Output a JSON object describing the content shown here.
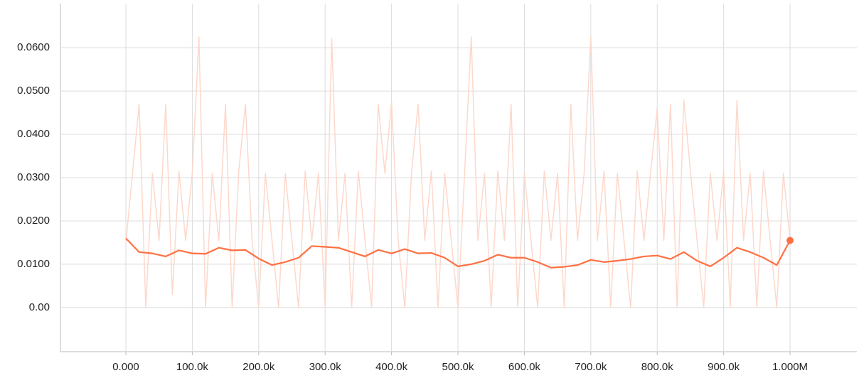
{
  "chart_data": {
    "type": "line",
    "xlim": [
      -98500,
      1100600
    ],
    "ylim": [
      -0.0102,
      0.0702
    ],
    "xticks": [
      {
        "value": 0,
        "label": "0.000"
      },
      {
        "value": 100000,
        "label": "100.0k"
      },
      {
        "value": 200000,
        "label": "200.0k"
      },
      {
        "value": 300000,
        "label": "300.0k"
      },
      {
        "value": 400000,
        "label": "400.0k"
      },
      {
        "value": 500000,
        "label": "500.0k"
      },
      {
        "value": 600000,
        "label": "600.0k"
      },
      {
        "value": 700000,
        "label": "700.0k"
      },
      {
        "value": 800000,
        "label": "800.0k"
      },
      {
        "value": 900000,
        "label": "900.0k"
      },
      {
        "value": 1000000,
        "label": "1.000M"
      }
    ],
    "yticks": [
      {
        "value": 0,
        "label": "0.00"
      },
      {
        "value": 0.01,
        "label": "0.0100"
      },
      {
        "value": 0.02,
        "label": "0.0200"
      },
      {
        "value": 0.03,
        "label": "0.0300"
      },
      {
        "value": 0.04,
        "label": "0.0400"
      },
      {
        "value": 0.05,
        "label": "0.0500"
      },
      {
        "value": 0.06,
        "label": "0.0600"
      }
    ],
    "grid": true,
    "series": [
      {
        "color": "#fdd8cb",
        "x": [
          0,
          10000,
          20000,
          30000,
          40000,
          50000,
          60000,
          70000,
          80000,
          90000,
          100000,
          110000,
          120000,
          130000,
          140000,
          150000,
          160000,
          170000,
          180000,
          190000,
          200000,
          210000,
          220000,
          230000,
          240000,
          250000,
          260000,
          270000,
          280000,
          290000,
          300000,
          310000,
          320000,
          330000,
          340000,
          350000,
          360000,
          370000,
          380000,
          390000,
          400000,
          410000,
          420000,
          430000,
          440000,
          450000,
          460000,
          470000,
          480000,
          490000,
          500000,
          510000,
          520000,
          530000,
          540000,
          550000,
          560000,
          570000,
          580000,
          590000,
          600000,
          610000,
          620000,
          630000,
          640000,
          650000,
          660000,
          670000,
          680000,
          690000,
          700000,
          710000,
          720000,
          730000,
          740000,
          750000,
          760000,
          770000,
          780000,
          790000,
          800000,
          810000,
          820000,
          830000,
          840000,
          850000,
          860000,
          870000,
          880000,
          890000,
          900000,
          910000,
          920000,
          930000,
          940000,
          950000,
          960000,
          970000,
          980000,
          990000,
          1000000
        ],
        "values": [
          0.015,
          0.031,
          0.047,
          0.0,
          0.031,
          0.0155,
          0.047,
          0.003,
          0.0315,
          0.0155,
          0.031,
          0.0625,
          0.0,
          0.031,
          0.0155,
          0.047,
          0.0,
          0.0315,
          0.047,
          0.0155,
          0.0,
          0.031,
          0.0155,
          0.0,
          0.031,
          0.0155,
          0.0,
          0.0315,
          0.0155,
          0.031,
          0.0,
          0.0622,
          0.0155,
          0.031,
          0.0,
          0.0315,
          0.0155,
          0.0,
          0.047,
          0.031,
          0.0475,
          0.0155,
          0.0,
          0.031,
          0.047,
          0.0155,
          0.0315,
          0.0,
          0.031,
          0.0155,
          0.0,
          0.031,
          0.0625,
          0.0155,
          0.031,
          0.0,
          0.0315,
          0.0155,
          0.047,
          0.0,
          0.031,
          0.0155,
          0.0,
          0.0315,
          0.0155,
          0.031,
          0.0,
          0.047,
          0.0155,
          0.031,
          0.0625,
          0.0155,
          0.0315,
          0.0,
          0.031,
          0.0155,
          0.0,
          0.0315,
          0.0155,
          0.031,
          0.046,
          0.0155,
          0.047,
          0.0,
          0.048,
          0.0315,
          0.0155,
          0.0,
          0.031,
          0.0155,
          0.0315,
          0.0,
          0.0478,
          0.0155,
          0.031,
          0.0,
          0.0315,
          0.0155,
          0.0,
          0.031,
          0.0155
        ]
      },
      {
        "color": "#ff7043",
        "x": [
          0,
          20000,
          40000,
          60000,
          80000,
          100000,
          120000,
          140000,
          160000,
          180000,
          200000,
          220000,
          240000,
          260000,
          280000,
          300000,
          320000,
          340000,
          360000,
          380000,
          400000,
          420000,
          440000,
          460000,
          480000,
          500000,
          520000,
          540000,
          560000,
          580000,
          600000,
          620000,
          640000,
          660000,
          680000,
          700000,
          720000,
          740000,
          760000,
          780000,
          800000,
          820000,
          840000,
          860000,
          880000,
          900000,
          920000,
          940000,
          960000,
          980000,
          1000000
        ],
        "values": [
          0.016,
          0.0128,
          0.0125,
          0.0118,
          0.0132,
          0.0125,
          0.0124,
          0.0138,
          0.0132,
          0.0133,
          0.0113,
          0.0098,
          0.0105,
          0.0115,
          0.0142,
          0.014,
          0.0138,
          0.0128,
          0.0118,
          0.0133,
          0.0125,
          0.0135,
          0.0125,
          0.0126,
          0.0115,
          0.0095,
          0.01,
          0.0108,
          0.0122,
          0.0115,
          0.0115,
          0.0105,
          0.0092,
          0.0094,
          0.0098,
          0.011,
          0.0105,
          0.0108,
          0.0112,
          0.0118,
          0.012,
          0.0112,
          0.0128,
          0.0108,
          0.0095,
          0.0115,
          0.0138,
          0.0128,
          0.0115,
          0.0098,
          0.0155
        ]
      }
    ]
  }
}
